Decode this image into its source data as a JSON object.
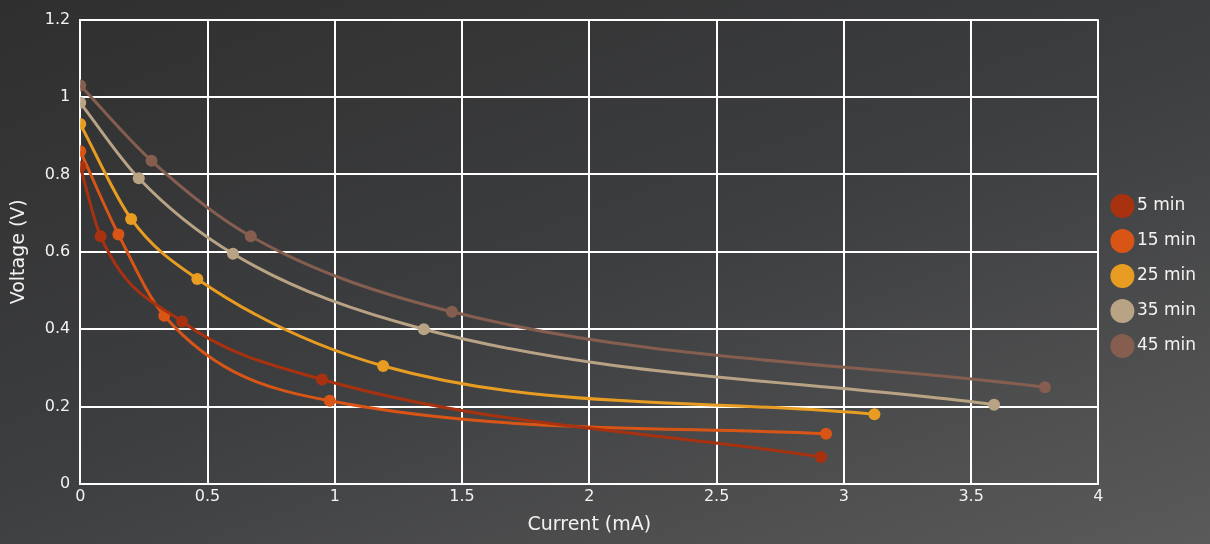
{
  "chart_data": {
    "type": "line",
    "xlabel": "Current (mA)",
    "ylabel": "Voltage (V)",
    "xlim": [
      0,
      4
    ],
    "xticks": [
      0,
      0.5,
      1,
      1.5,
      2,
      2.5,
      3,
      3.5,
      4
    ],
    "ylim": [
      0,
      1.2
    ],
    "yticks": [
      0,
      0.2,
      0.4,
      0.6,
      0.8,
      1,
      1.2
    ],
    "grid": true,
    "legend": "right",
    "marker": "circle",
    "line_style": "solid",
    "series": [
      {
        "name": "5 min",
        "color": "#a8310f",
        "x": [
          0,
          0.08,
          0.4,
          0.95,
          2.91
        ],
        "values": [
          0.82,
          0.64,
          0.42,
          0.27,
          0.07
        ]
      },
      {
        "name": "15 min",
        "color": "#d95516",
        "x": [
          0,
          0.15,
          0.33,
          0.98,
          2.93
        ],
        "values": [
          0.86,
          0.645,
          0.435,
          0.215,
          0.13
        ]
      },
      {
        "name": "25 min",
        "color": "#e89d22",
        "x": [
          0,
          0.2,
          0.46,
          1.19,
          3.12
        ],
        "values": [
          0.93,
          0.685,
          0.53,
          0.305,
          0.18
        ]
      },
      {
        "name": "35 min",
        "color": "#b9a385",
        "x": [
          0,
          0.23,
          0.6,
          1.35,
          3.59
        ],
        "values": [
          0.985,
          0.79,
          0.595,
          0.4,
          0.205
        ]
      },
      {
        "name": "45 min",
        "color": "#855e50",
        "x": [
          0,
          0.28,
          0.67,
          1.46,
          3.79
        ],
        "values": [
          1.03,
          0.835,
          0.64,
          0.445,
          0.25
        ]
      }
    ]
  }
}
